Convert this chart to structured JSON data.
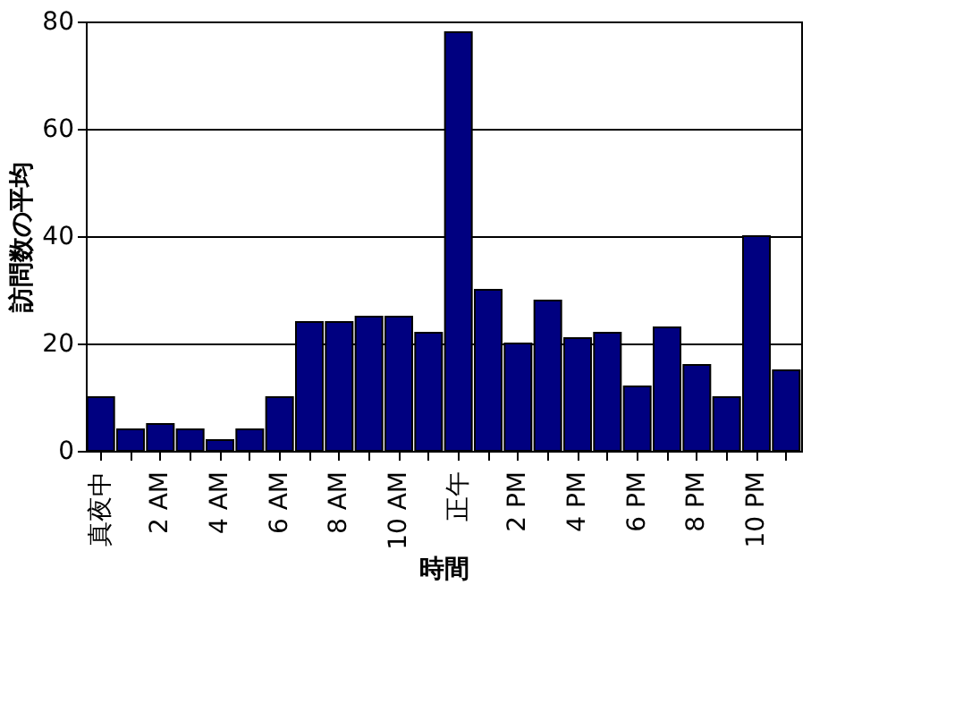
{
  "chart_data": {
    "type": "bar",
    "xlabel": "時間",
    "ylabel": "訪問数の平均",
    "categories": [
      "真夜中",
      null,
      "2 AM",
      null,
      "4 AM",
      null,
      "6 AM",
      null,
      "8 AM",
      null,
      "10 AM",
      null,
      "正午",
      null,
      "2 PM",
      null,
      "4 PM",
      null,
      "6 PM",
      null,
      "8 PM",
      null,
      "10 PM",
      null
    ],
    "values": [
      10,
      4,
      5,
      4,
      2,
      4,
      10,
      24,
      24,
      25,
      25,
      22,
      78,
      30,
      20,
      28,
      21,
      22,
      12,
      23,
      16,
      10,
      40,
      15
    ],
    "color": "#000080",
    "ylim": [
      0,
      80
    ],
    "yticks": [
      0,
      20,
      40,
      60,
      80
    ],
    "grid": "y"
  }
}
